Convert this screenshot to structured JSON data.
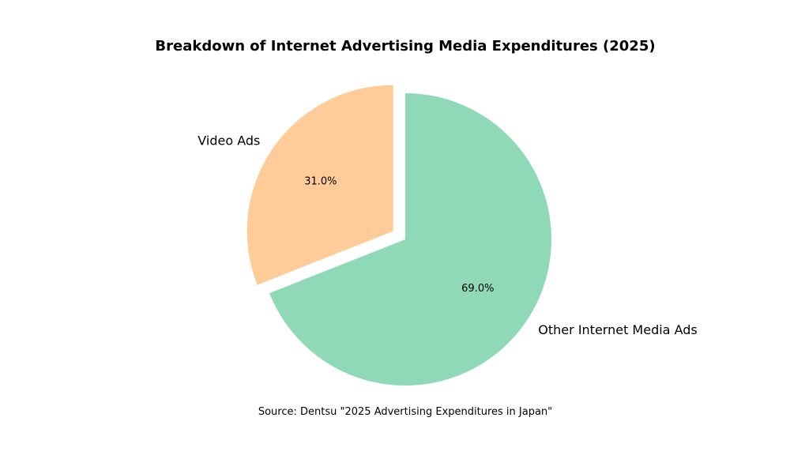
{
  "chart_data": {
    "type": "pie",
    "title": "Breakdown of Internet Advertising Media Expenditures (2025)",
    "categories": [
      "Video Ads",
      "Other Internet Media Ads"
    ],
    "values": [
      31.0,
      69.0
    ],
    "percent_labels": [
      "31.0%",
      "69.0%"
    ],
    "colors": [
      "#ffcc99",
      "#90d9b8"
    ],
    "exploded": [
      true,
      false
    ],
    "start_angle_deg": 90,
    "direction": "counterclockwise",
    "legend": "none",
    "note": "Source: Dentsu \"2025 Advertising Expenditures in Japan\""
  }
}
